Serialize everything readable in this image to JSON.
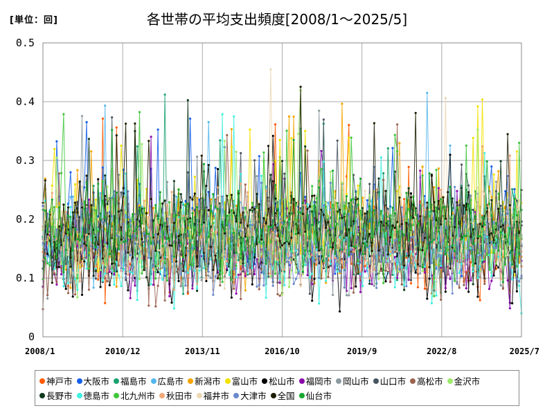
{
  "header": {
    "unit": "[単位：回]",
    "title": "各世帯の平均支出頻度[2008/1～2025/5]"
  },
  "chart_data": {
    "type": "line",
    "title": "各世帯の平均支出頻度[2008/1～2025/5]",
    "unit_label": "[単位：回]",
    "ylim": [
      0,
      0.5
    ],
    "y_ticks": [
      {
        "value": 0.5,
        "label": "0.5"
      },
      {
        "value": 0.4,
        "label": "0.4"
      },
      {
        "value": 0.3,
        "label": "0.3"
      },
      {
        "value": 0.2,
        "label": "0.2"
      },
      {
        "value": 0.1,
        "label": "0.1"
      },
      {
        "value": 0,
        "label": "0"
      }
    ],
    "x_range": [
      "2008-01",
      "2025-07"
    ],
    "x_ticks": [
      "2008/1",
      "2010/12",
      "2013/11",
      "2016/10",
      "2019/9",
      "2022/8",
      "2025/7"
    ],
    "grid": true,
    "legend_position": "bottom",
    "approx_range": [
      0.02,
      0.49
    ],
    "series": [
      {
        "name": "神戸市",
        "color": "#ff5a00"
      },
      {
        "name": "大阪市",
        "color": "#1560e8"
      },
      {
        "name": "福島市",
        "color": "#1aa26f"
      },
      {
        "name": "広島市",
        "color": "#55b7ee"
      },
      {
        "name": "新潟市",
        "color": "#f5a500"
      },
      {
        "name": "富山市",
        "color": "#f2e200"
      },
      {
        "name": "松山市",
        "color": "#000000"
      },
      {
        "name": "福岡市",
        "color": "#8a0cab"
      },
      {
        "name": "岡山市",
        "color": "#8c9aa0"
      },
      {
        "name": "山口市",
        "color": "#4a5562"
      },
      {
        "name": "高松市",
        "color": "#9b6350"
      },
      {
        "name": "金沢市",
        "color": "#9fea6a"
      },
      {
        "name": "長野市",
        "color": "#0f3a1d"
      },
      {
        "name": "徳島市",
        "color": "#40f0e0"
      },
      {
        "name": "北九州市",
        "color": "#40c63c"
      },
      {
        "name": "秋田市",
        "color": "#f0a878"
      },
      {
        "name": "福井市",
        "color": "#ecd8b4"
      },
      {
        "name": "大津市",
        "color": "#6a88cc"
      },
      {
        "name": "全国",
        "color": "#1c1c00"
      },
      {
        "name": "仙台市",
        "color": "#18a830"
      }
    ]
  }
}
